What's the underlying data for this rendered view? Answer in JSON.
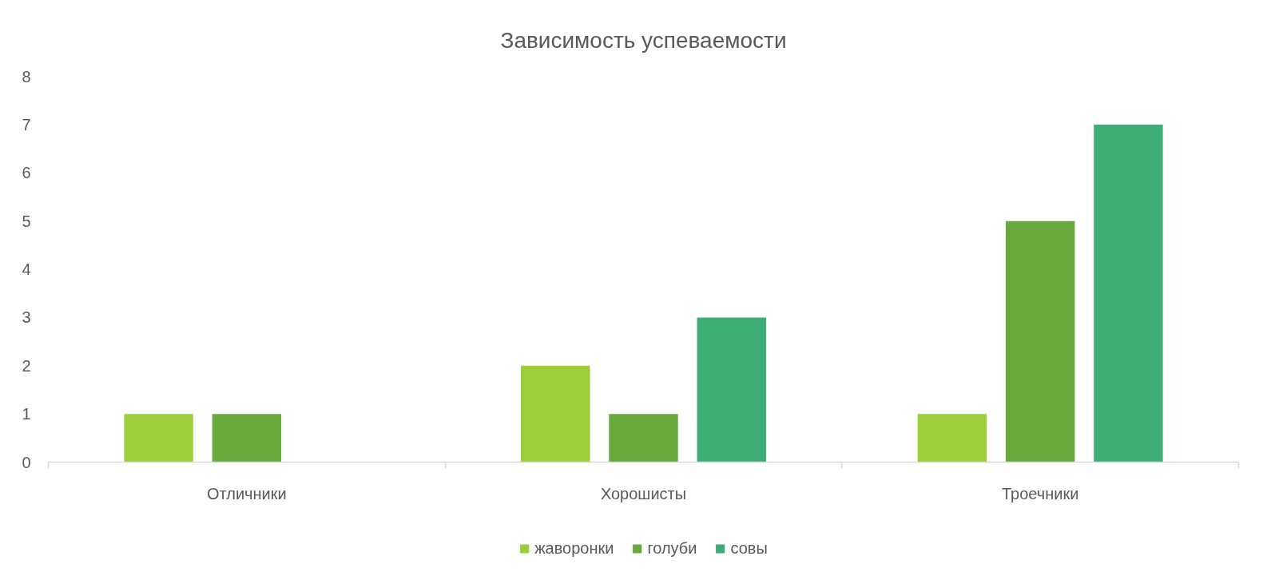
{
  "chart_data": {
    "type": "bar",
    "title": "Зависимость успеваемости",
    "categories": [
      "Отличники",
      "Хорошисты",
      "Троечники"
    ],
    "series": [
      {
        "name": "жаворонки",
        "color": "#9ecd3c",
        "values": [
          1,
          2,
          1
        ]
      },
      {
        "name": "голуби",
        "color": "#68a93d",
        "values": [
          1,
          1,
          5
        ]
      },
      {
        "name": "совы",
        "color": "#3dac75",
        "values": [
          null,
          3,
          7
        ]
      }
    ],
    "ylim": [
      0,
      8
    ],
    "yticks": [
      0,
      1,
      2,
      3,
      4,
      5,
      6,
      7,
      8
    ],
    "grid": false,
    "legend": "bottom"
  }
}
